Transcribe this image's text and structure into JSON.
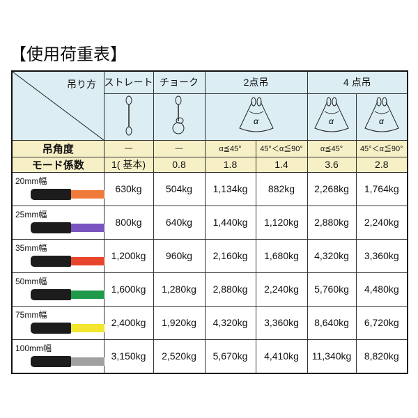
{
  "title": "【使用荷重表】",
  "header": {
    "method_label": "吊り方",
    "straight": "ストレート",
    "choke": "チョーク",
    "two_point": "2点吊",
    "four_point": "4 点吊",
    "alpha": "α"
  },
  "angle_row": {
    "label": "吊角度",
    "values": [
      "—",
      "—",
      "α≦45°",
      "45°＜α≦90°",
      "α≦45°",
      "45°＜α≦90°"
    ]
  },
  "mode_row": {
    "label": "モード係数",
    "values": [
      "1( 基本)",
      "0.8",
      "1.8",
      "1.4",
      "3.6",
      "2.8"
    ]
  },
  "rows": [
    {
      "width": "20mm幅",
      "color": "#f07a3a",
      "values": [
        "630kg",
        "504kg",
        "1,134kg",
        "882kg",
        "2,268kg",
        "1,764kg"
      ]
    },
    {
      "width": "25mm幅",
      "color": "#7a55c0",
      "values": [
        "800kg",
        "640kg",
        "1,440kg",
        "1,120kg",
        "2,880kg",
        "2,240kg"
      ]
    },
    {
      "width": "35mm幅",
      "color": "#e8462c",
      "values": [
        "1,200kg",
        "960kg",
        "2,160kg",
        "1,680kg",
        "4,320kg",
        "3,360kg"
      ]
    },
    {
      "width": "50mm幅",
      "color": "#1e9a4a",
      "values": [
        "1,600kg",
        "1,280kg",
        "2,880kg",
        "2,240kg",
        "5,760kg",
        "4,480kg"
      ]
    },
    {
      "width": "75mm幅",
      "color": "#f2e62e",
      "values": [
        "2,400kg",
        "1,920kg",
        "4,320kg",
        "3,360kg",
        "8,640kg",
        "6,720kg"
      ]
    },
    {
      "width": "100mm幅",
      "color": "#a0a0a0",
      "values": [
        "3,150kg",
        "2,520kg",
        "5,670kg",
        "4,410kg",
        "11,340kg",
        "8,820kg"
      ]
    }
  ]
}
